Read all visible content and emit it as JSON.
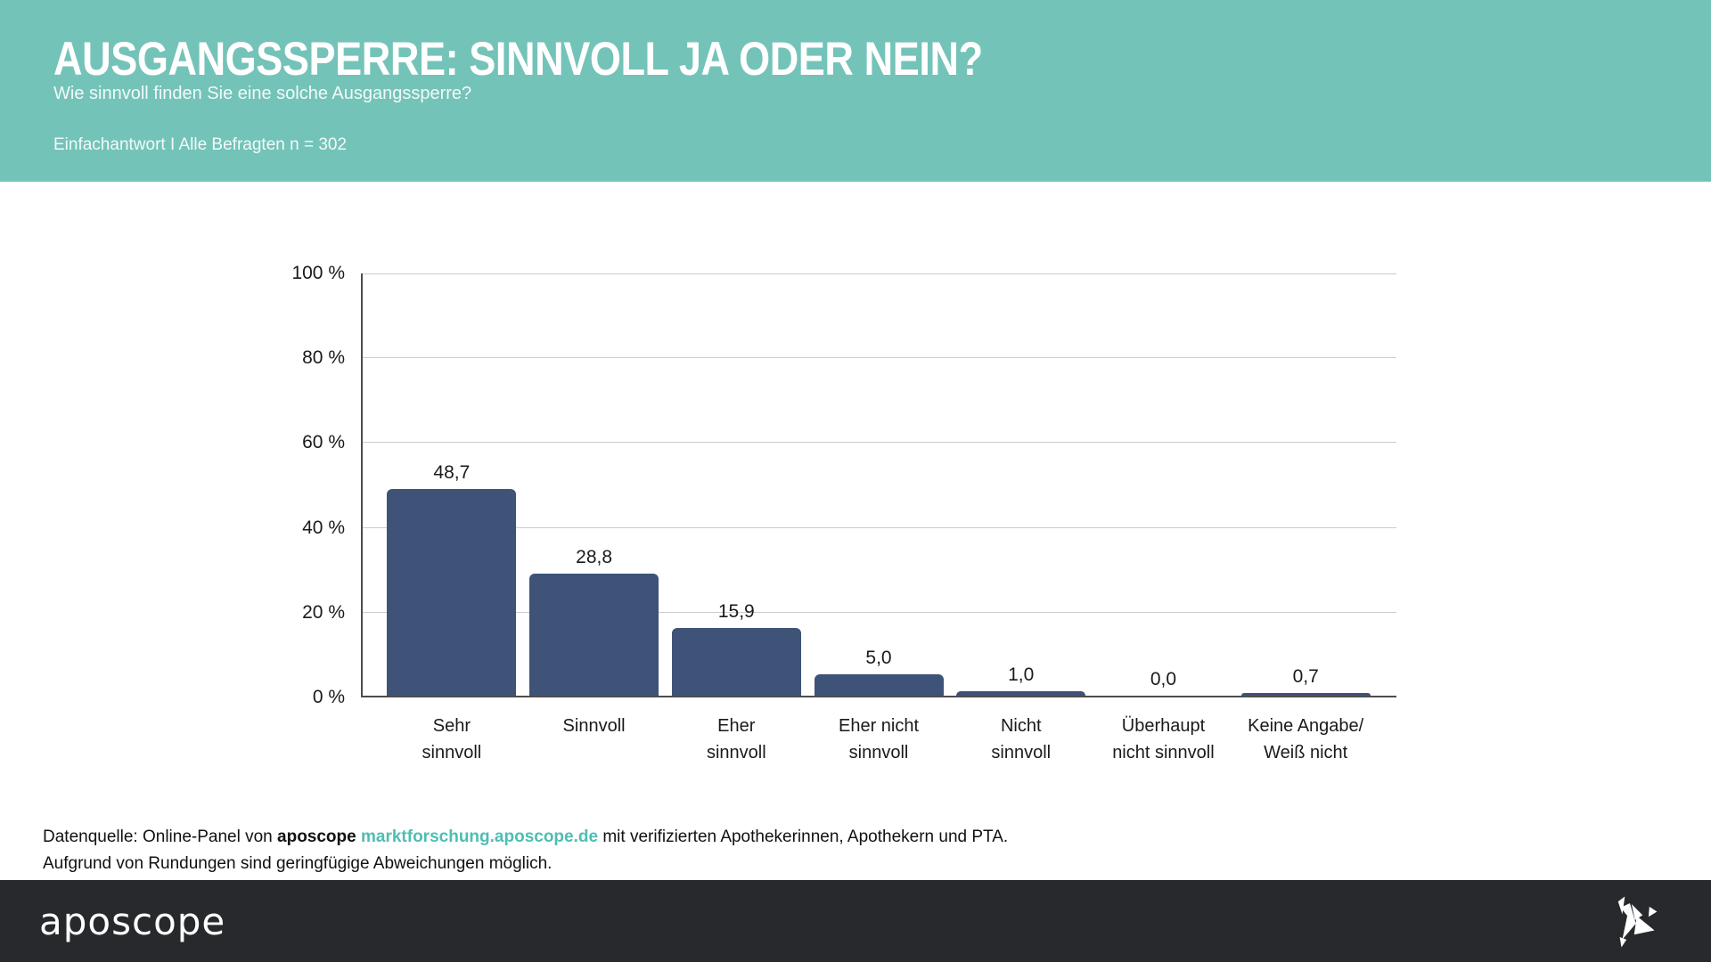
{
  "header": {
    "title": "AUSGANGSSPERRE: SINNVOLL JA ODER NEIN?",
    "subtitle": "Wie sinnvoll finden Sie eine solche Ausgangssperre?",
    "meta": "Einfachantwort I Alle Befragten n = 302"
  },
  "chart_data": {
    "type": "bar",
    "title": "Ausgangssperre: Sinnvoll ja oder nein?",
    "categories": [
      "Sehr sinnvoll",
      "Sinnvoll",
      "Eher sinnvoll",
      "Eher nicht sinnvoll",
      "Nicht sinnvoll",
      "Überhaupt nicht sinnvoll",
      "Keine Angabe/Weiß nicht"
    ],
    "values": [
      48.7,
      28.8,
      15.9,
      5.0,
      1.0,
      0.0,
      0.7
    ],
    "value_labels": [
      "48,7",
      "28,8",
      "15,9",
      "5,0",
      "1,0",
      "0,0",
      "0,7"
    ],
    "category_lines": [
      [
        "Sehr",
        "sinnvoll"
      ],
      [
        "Sinnvoll",
        ""
      ],
      [
        "Eher",
        "sinnvoll"
      ],
      [
        "Eher nicht",
        "sinnvoll"
      ],
      [
        "Nicht",
        "sinnvoll"
      ],
      [
        "Überhaupt",
        "nicht sinnvoll"
      ],
      [
        "Keine Angabe/",
        "Weiß nicht"
      ]
    ],
    "xlabel": "",
    "ylabel": "",
    "ylim": [
      0,
      100
    ],
    "yticks": [
      "100 %",
      "80 %",
      "60 %",
      "40 %",
      "20 %",
      "0 %"
    ],
    "grid": true,
    "legend": false,
    "bar_color": "#3e5377",
    "unit": "%"
  },
  "footnote": {
    "line1_prefix": "Datenquelle: Online-Panel von ",
    "brand": "aposcope",
    "link": "marktforschung.aposcope.de",
    "line1_suffix": " mit verifizierten Apothekerinnen, Apothekern und PTA.",
    "line2": "Aufgrund von Rundungen sind geringfügige Abweichungen möglich."
  },
  "footer": {
    "logo_text": "aposcope",
    "bird_icon": "origami-bird"
  },
  "colors": {
    "header_bg": "#74c3b9",
    "bar": "#3e5377",
    "footer_bg": "#27292d",
    "link": "#4fbdb3",
    "grid": "#cccccc",
    "axis": "#4d4d4d"
  }
}
